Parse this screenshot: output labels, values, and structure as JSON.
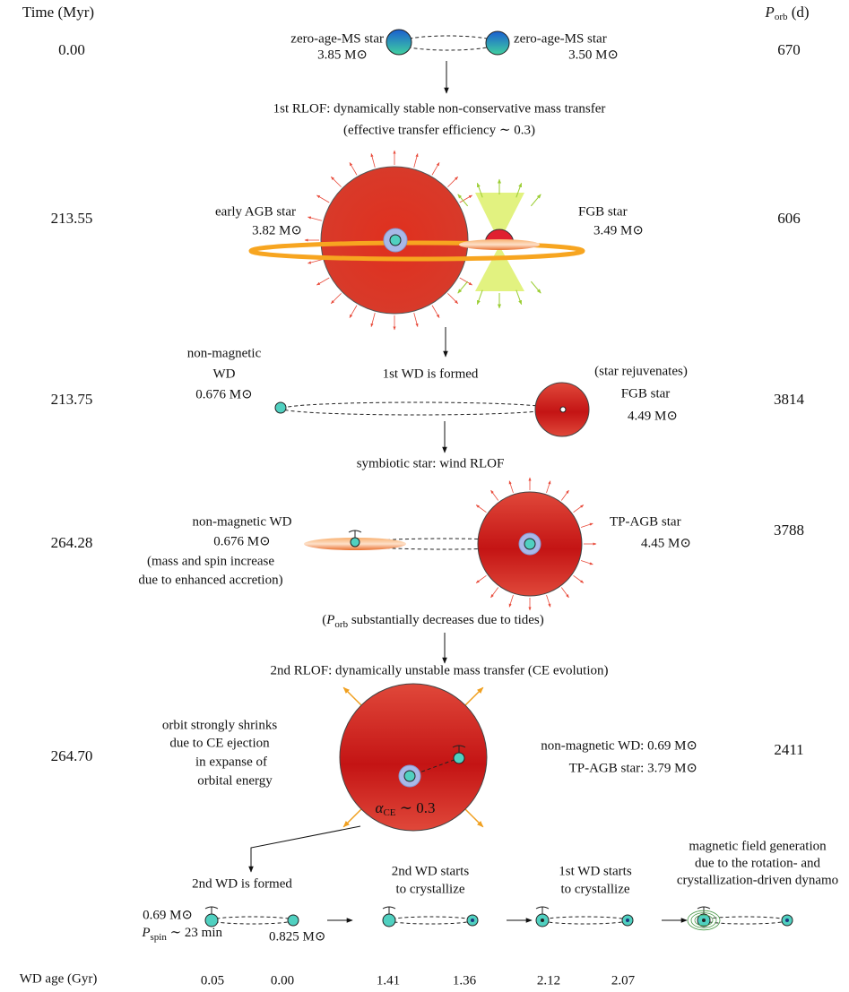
{
  "header": {
    "time_label": "Time (Myr)",
    "porb_label": {
      "symbol": "P",
      "subscript": "orb",
      "unit": " (d)"
    }
  },
  "stages": [
    {
      "time": "0.00",
      "porb": "670",
      "left": [
        "zero-age-MS star",
        "3.85 M⊙"
      ],
      "right": [
        "zero-age-MS star",
        "3.50 M⊙"
      ]
    },
    {
      "time": "213.55",
      "porb": "606",
      "left": [
        "early AGB star",
        "3.82 M⊙"
      ],
      "right": [
        "FGB star",
        "3.49 M⊙"
      ]
    },
    {
      "time": "213.75",
      "porb": "3814",
      "left": [
        "non-magnetic",
        "WD",
        "0.676 M⊙"
      ],
      "right": [
        "(star rejuvenates)",
        "FGB star",
        "4.49 M⊙"
      ]
    },
    {
      "time": "264.28",
      "porb": "3788",
      "left": [
        "non-magnetic WD",
        "0.676 M⊙",
        "(mass and spin increase",
        "due to enhanced accretion)"
      ],
      "right": [
        "TP-AGB star",
        "4.45 M⊙"
      ]
    },
    {
      "time": "264.70",
      "porb": "2411",
      "left": [
        "orbit strongly shrinks",
        "due to CE ejection",
        "in expanse of",
        "orbital energy"
      ],
      "right": [
        "non-magnetic WD: 0.69 M⊙",
        "TP-AGB star: 3.79 M⊙"
      ],
      "inner": {
        "symbol": "α",
        "subscript": "CE",
        "rest": " ∼ 0.3"
      }
    }
  ],
  "transitions": {
    "rlof1": [
      "1st RLOF: dynamically stable non-conservative mass transfer",
      "(effective transfer efficiency ∼ 0.3)"
    ],
    "wd1": "1st WD is formed",
    "symbiotic": "symbiotic star: wind RLOF",
    "tides": {
      "open": "(",
      "symbol": "P",
      "subscript": "orb",
      "rest": " substantially decreases due to tides)"
    },
    "rlof2": "2nd RLOF: dynamically unstable mass transfer (CE evolution)"
  },
  "panels": [
    {
      "title": [
        "2nd WD is formed"
      ],
      "left": [
        "0.69 M⊙"
      ],
      "spin": {
        "symbol": "P",
        "subscript": "spin",
        "rest": " ∼ 23 min"
      },
      "right": "0.825 M⊙"
    },
    {
      "title": [
        "2nd WD starts",
        "to crystallize"
      ]
    },
    {
      "title": [
        "1st WD starts",
        "to crystallize"
      ]
    },
    {
      "title": [
        "magnetic field generation",
        "due to the rotation- and",
        "crystallization-driven dynamo"
      ]
    }
  ],
  "wd_age": {
    "label": "WD age (Gyr)",
    "values": [
      "0.05",
      "0.00",
      "1.41",
      "1.36",
      "2.12",
      "2.07"
    ]
  }
}
